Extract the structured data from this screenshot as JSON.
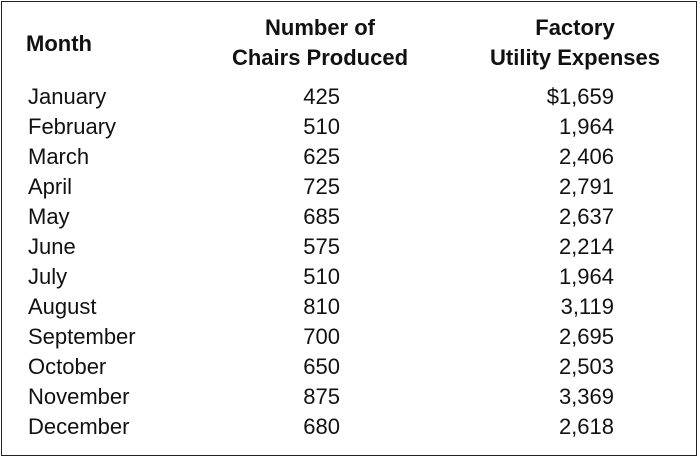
{
  "table": {
    "headers": {
      "month": "Month",
      "chairs_line1": "Number of",
      "chairs_line2": "Chairs Produced",
      "utility_line1": "Factory",
      "utility_line2": "Utility Expenses"
    },
    "rows": [
      {
        "month": "January",
        "chairs": "425",
        "utility": "$1,659"
      },
      {
        "month": "February",
        "chairs": "510",
        "utility": "1,964"
      },
      {
        "month": "March",
        "chairs": "625",
        "utility": "2,406"
      },
      {
        "month": "April",
        "chairs": "725",
        "utility": "2,791"
      },
      {
        "month": "May",
        "chairs": "685",
        "utility": "2,637"
      },
      {
        "month": "June",
        "chairs": "575",
        "utility": "2,214"
      },
      {
        "month": "July",
        "chairs": "510",
        "utility": "1,964"
      },
      {
        "month": "August",
        "chairs": "810",
        "utility": "3,119"
      },
      {
        "month": "September",
        "chairs": "700",
        "utility": "2,695"
      },
      {
        "month": "October",
        "chairs": "650",
        "utility": "2,503"
      },
      {
        "month": "November",
        "chairs": "875",
        "utility": "3,369"
      },
      {
        "month": "December",
        "chairs": "680",
        "utility": "2,618"
      }
    ]
  }
}
